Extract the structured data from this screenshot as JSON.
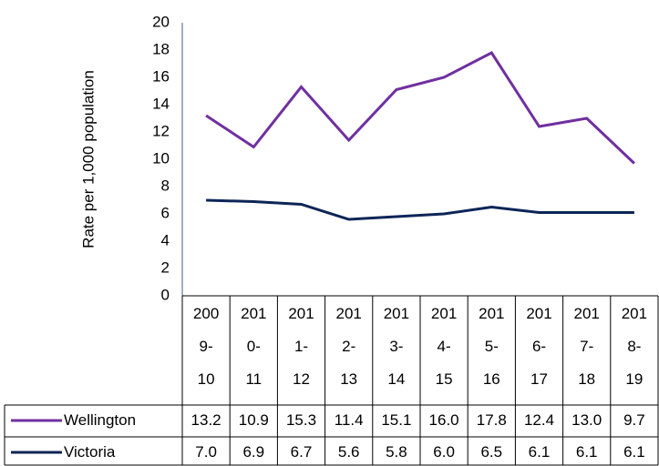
{
  "chart_data": {
    "type": "line",
    "y_label": "Rate per 1,000 population",
    "categories": [
      "2009-10",
      "2010-11",
      "2011-12",
      "2012-13",
      "2013-14",
      "2014-15",
      "2015-16",
      "2016-17",
      "2017-18",
      "2018-19"
    ],
    "series": [
      {
        "name": "Wellington",
        "color": "#7030a0",
        "values": [
          13.2,
          10.9,
          15.3,
          11.4,
          15.1,
          16.0,
          17.8,
          12.4,
          13.0,
          9.7
        ],
        "value_labels": [
          "13.2",
          "10.9",
          "15.3",
          "11.4",
          "15.1",
          "16.0",
          "17.8",
          "12.4",
          "13.0",
          "9.7"
        ]
      },
      {
        "name": "Victoria",
        "color": "#0d2557",
        "values": [
          7.0,
          6.9,
          6.7,
          5.6,
          5.8,
          6.0,
          6.5,
          6.1,
          6.1,
          6.1
        ],
        "value_labels": [
          "7.0",
          "6.9",
          "6.7",
          "5.6",
          "5.8",
          "6.0",
          "6.5",
          "6.1",
          "6.1",
          "6.1"
        ]
      }
    ],
    "ylim": [
      0,
      20
    ],
    "yticks": [
      0,
      2,
      4,
      6,
      8,
      10,
      12,
      14,
      16,
      18,
      20
    ],
    "grid": false
  }
}
